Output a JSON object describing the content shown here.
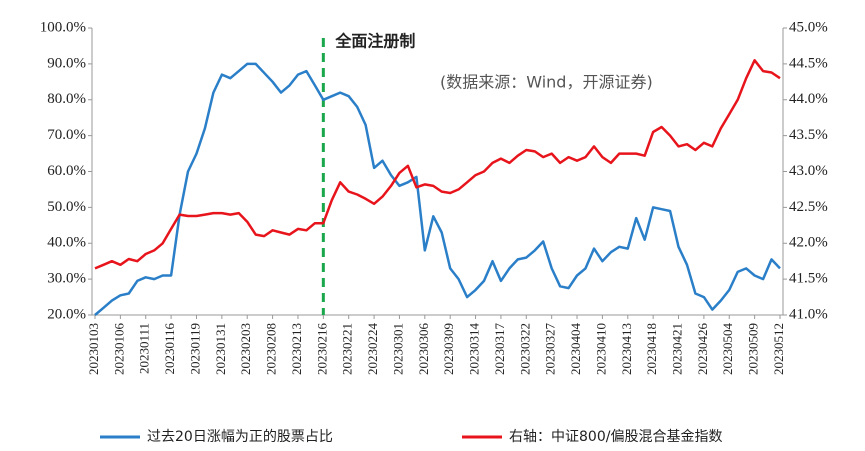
{
  "chart_data": {
    "type": "line",
    "categories": [
      "20230103",
      null,
      null,
      "20230106",
      null,
      null,
      "20230111",
      null,
      null,
      "20230116",
      null,
      null,
      "20230119",
      null,
      null,
      "20230131",
      null,
      null,
      "20230203",
      null,
      null,
      "20230208",
      null,
      null,
      "20230213",
      null,
      null,
      "20230216",
      null,
      null,
      "20230221",
      null,
      null,
      "20230224",
      null,
      null,
      "20230301",
      null,
      null,
      "20230306",
      null,
      null,
      "20230309",
      null,
      null,
      "20230314",
      null,
      null,
      "20230317",
      null,
      null,
      "20230322",
      null,
      null,
      "20230327",
      null,
      null,
      "20230404",
      null,
      null,
      "20230410",
      null,
      null,
      "20230413",
      null,
      null,
      "20230418",
      null,
      null,
      "20230421",
      null,
      null,
      "20230426",
      null,
      null,
      "20230504",
      null,
      null,
      "20230509",
      null,
      null,
      "20230512"
    ],
    "series": [
      {
        "name": "过去20日涨幅为正的股票占比",
        "color": "#2a7fc8",
        "axis": "y",
        "values": [
          20,
          22,
          24,
          25.5,
          26,
          29.5,
          30.5,
          30,
          31,
          31,
          48,
          60,
          65,
          72,
          82,
          87,
          86,
          88,
          90,
          90,
          87.5,
          85,
          82,
          84,
          87,
          88,
          84,
          80,
          81,
          82,
          81,
          78,
          73,
          61,
          63,
          59,
          56,
          57,
          58.5,
          38,
          47.5,
          43,
          33,
          30,
          25,
          27,
          29.5,
          35,
          29.5,
          33,
          35.5,
          36,
          38,
          40.5,
          33,
          28,
          27.5,
          31,
          33,
          38.5,
          35,
          37.5,
          39,
          38.5,
          47,
          41,
          50,
          49.5,
          49,
          39,
          34,
          26,
          25,
          21.5,
          24,
          27,
          32,
          33,
          31,
          30,
          35.5,
          33
        ]
      },
      {
        "name": "右轴：中证800/偏股混合基金指数",
        "color": "#e8141c",
        "axis": "y2",
        "values": [
          41.65,
          41.7,
          41.75,
          41.7,
          41.78,
          41.75,
          41.85,
          41.9,
          42.0,
          42.2,
          42.4,
          42.38,
          42.38,
          42.4,
          42.42,
          42.42,
          42.4,
          42.42,
          42.3,
          42.12,
          42.1,
          42.18,
          42.15,
          42.12,
          42.2,
          42.18,
          42.28,
          42.28,
          42.6,
          42.85,
          42.72,
          42.68,
          42.62,
          42.55,
          42.65,
          42.8,
          42.98,
          43.08,
          42.78,
          42.82,
          42.8,
          42.72,
          42.7,
          42.75,
          42.85,
          42.95,
          43.0,
          43.12,
          43.18,
          43.12,
          43.22,
          43.3,
          43.28,
          43.2,
          43.25,
          43.12,
          43.2,
          43.15,
          43.2,
          43.35,
          43.2,
          43.12,
          43.25,
          43.25,
          43.25,
          43.22,
          43.55,
          43.62,
          43.5,
          43.35,
          43.38,
          43.3,
          43.4,
          43.35,
          43.6,
          43.8,
          44.0,
          44.3,
          44.55,
          44.4,
          44.38,
          44.3
        ]
      }
    ],
    "ylim": [
      20,
      100
    ],
    "yticks": [
      {
        "value": 20,
        "label": "20.0%"
      },
      {
        "value": 30,
        "label": "30.0%"
      },
      {
        "value": 40,
        "label": "40.0%"
      },
      {
        "value": 50,
        "label": "50.0%"
      },
      {
        "value": 60,
        "label": "60.0%"
      },
      {
        "value": 70,
        "label": "70.0%"
      },
      {
        "value": 80,
        "label": "80.0%"
      },
      {
        "value": 90,
        "label": "90.0%"
      },
      {
        "value": 100,
        "label": "100.0%"
      }
    ],
    "y2lim": [
      41,
      45
    ],
    "y2ticks": [
      {
        "value": 41,
        "label": "41.0%"
      },
      {
        "value": 41.5,
        "label": "41.5%"
      },
      {
        "value": 42,
        "label": "42.0%"
      },
      {
        "value": 42.5,
        "label": "42.5%"
      },
      {
        "value": 43,
        "label": "43.0%"
      },
      {
        "value": 43.5,
        "label": "43.5%"
      },
      {
        "value": 44,
        "label": "44.0%"
      },
      {
        "value": 44.5,
        "label": "44.5%"
      },
      {
        "value": 45,
        "label": "45.0%"
      }
    ],
    "annotations": [
      {
        "text": "全面注册制",
        "x": "20230216",
        "color": "#1aa64a"
      }
    ],
    "source": "(数据来源：Wind，开源证券)",
    "legend": "bottom"
  }
}
